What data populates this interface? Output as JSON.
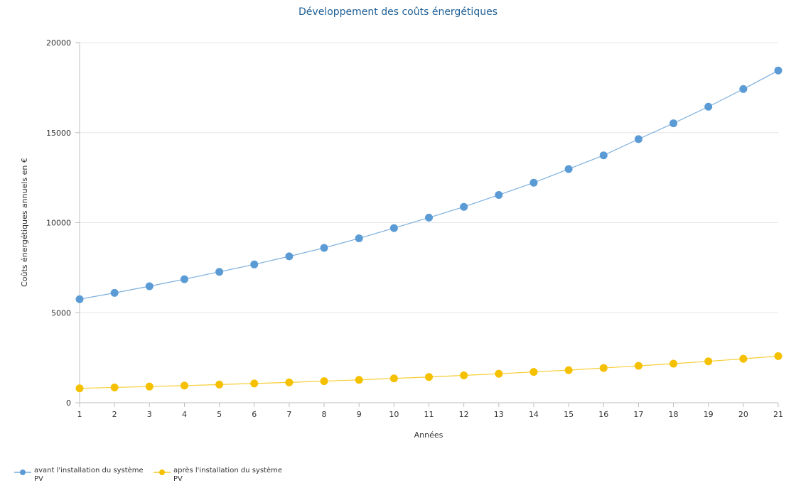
{
  "chart_data": {
    "type": "line",
    "title": "Développement des coûts énergétiques",
    "xlabel": "Années",
    "ylabel": "Coûts énergétiques annuels en €",
    "x": [
      1,
      2,
      3,
      4,
      5,
      6,
      7,
      8,
      9,
      10,
      11,
      12,
      13,
      14,
      15,
      16,
      17,
      18,
      19,
      20,
      21
    ],
    "ylim": [
      0,
      20000
    ],
    "yticks": [
      0,
      5000,
      10000,
      15000,
      20000
    ],
    "grid": true,
    "legend_position": "bottom-left",
    "series": [
      {
        "name_lines": [
          "avant l'installation du système",
          "PV"
        ],
        "color": "#5b9bd5",
        "values": [
          5750,
          6100,
          6470,
          6860,
          7270,
          7680,
          8130,
          8600,
          9130,
          9700,
          10280,
          10880,
          11540,
          12220,
          12980,
          13740,
          14640,
          15520,
          16440,
          17420,
          18450
        ]
      },
      {
        "name_lines": [
          "après l'installation du système",
          "PV"
        ],
        "color": "#f5c000",
        "values": [
          800,
          850,
          900,
          950,
          1010,
          1070,
          1130,
          1200,
          1270,
          1350,
          1430,
          1520,
          1610,
          1710,
          1810,
          1930,
          2050,
          2170,
          2300,
          2440,
          2590
        ]
      }
    ]
  }
}
